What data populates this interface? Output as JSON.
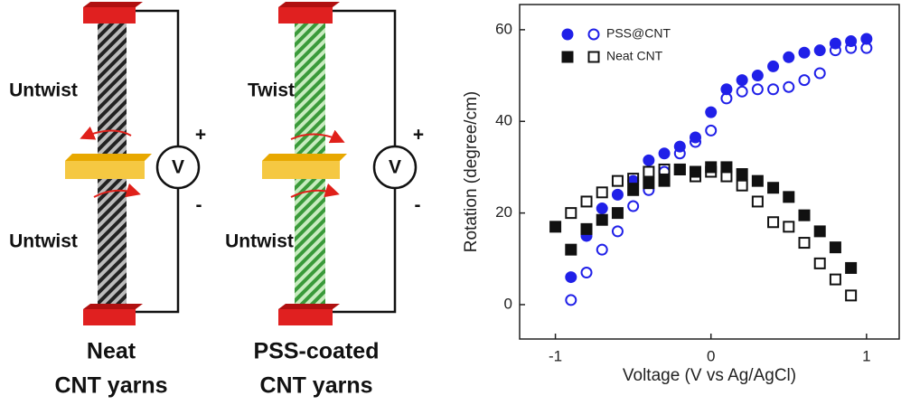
{
  "diagram": {
    "left": {
      "upper": "Untwist",
      "lower": "Untwist",
      "meter": "V",
      "plus": "+",
      "minus": "-",
      "caption": [
        "Neat",
        "CNT yarns"
      ]
    },
    "right": {
      "upper": "Twist",
      "lower": "Untwist",
      "meter": "V",
      "plus": "+",
      "minus": "-",
      "caption": [
        "PSS-coated",
        "CNT yarns"
      ]
    }
  },
  "chart_data": {
    "type": "scatter",
    "xlabel": "Voltage (V vs Ag/AgCl)",
    "ylabel": "Rotation (degree/cm)",
    "xlim": [
      -1.23,
      1.21
    ],
    "ylim": [
      -7.5,
      65.5
    ],
    "xticks": [
      -1,
      0,
      1
    ],
    "yticks": [
      0,
      20,
      40,
      60
    ],
    "series": [
      {
        "name": "PSS@CNT",
        "color": "#2020e8",
        "marker": "circle",
        "filled": true,
        "x": [
          -0.9,
          -0.8,
          -0.7,
          -0.6,
          -0.5,
          -0.4,
          -0.3,
          -0.2,
          -0.1,
          0,
          0.1,
          0.2,
          0.3,
          0.4,
          0.5,
          0.6,
          0.7,
          0.8,
          0.9,
          1.0
        ],
        "values": [
          6,
          15,
          21,
          24,
          27,
          31.5,
          33,
          34.5,
          36.5,
          42,
          47,
          49,
          50,
          52,
          54,
          55,
          55.5,
          57,
          57.5,
          58
        ]
      },
      {
        "color": "#2020e8",
        "marker": "circle",
        "filled": false,
        "x": [
          -0.9,
          -0.8,
          -0.7,
          -0.6,
          -0.5,
          -0.4,
          -0.3,
          -0.2,
          -0.1,
          0,
          0.1,
          0.2,
          0.3,
          0.4,
          0.5,
          0.6,
          0.7,
          0.8,
          0.9,
          1.0
        ],
        "values": [
          1,
          7,
          12,
          16,
          21.5,
          25,
          29,
          33,
          35.5,
          38,
          45,
          46.5,
          47,
          47,
          47.5,
          49,
          50.5,
          55.5,
          56,
          56
        ]
      },
      {
        "name": "Neat CNT",
        "color": "#111111",
        "marker": "square",
        "filled": true,
        "x": [
          -1.0,
          -0.9,
          -0.8,
          -0.7,
          -0.6,
          -0.5,
          -0.4,
          -0.3,
          -0.2,
          -0.1,
          0,
          0.1,
          0.2,
          0.3,
          0.4,
          0.5,
          0.6,
          0.7,
          0.8,
          0.9
        ],
        "values": [
          17,
          12,
          16.5,
          18.5,
          20,
          25,
          26.5,
          27,
          29.5,
          29,
          30,
          30,
          28.5,
          27,
          25.5,
          23.5,
          19.5,
          16,
          12.5,
          8
        ]
      },
      {
        "color": "#111111",
        "marker": "square",
        "filled": false,
        "x": [
          -0.9,
          -0.8,
          -0.7,
          -0.6,
          -0.5,
          -0.4,
          -0.3,
          -0.2,
          -0.1,
          0,
          0.1,
          0.2,
          0.3,
          0.4,
          0.5,
          0.6,
          0.7,
          0.8,
          0.9
        ],
        "values": [
          20,
          22.5,
          24.5,
          27,
          27.5,
          29,
          29.5,
          29.5,
          28,
          29,
          28,
          26,
          22.5,
          18,
          17,
          13.5,
          9,
          5.5,
          2
        ]
      }
    ]
  }
}
